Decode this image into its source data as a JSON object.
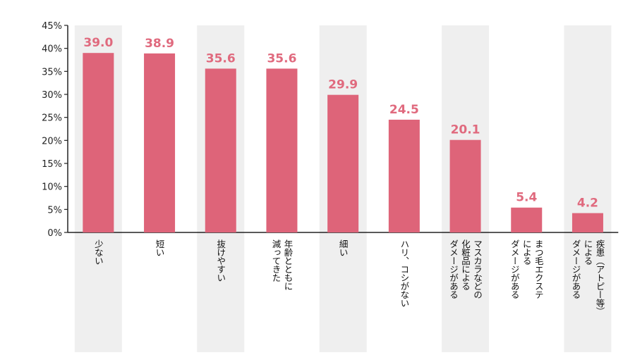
{
  "chart_data": {
    "type": "bar",
    "categories": [
      [
        "少ない"
      ],
      [
        "短い"
      ],
      [
        "抜けやすい"
      ],
      [
        "年齢とともに",
        "減ってきた"
      ],
      [
        "細い"
      ],
      [
        "ハリ、コシがない"
      ],
      [
        "マスカラなどの",
        "化粧品による",
        "ダメージがある"
      ],
      [
        "まつ毛エクステ",
        "による",
        "ダメージがある"
      ],
      [
        "疾患（アトピー等）",
        "による",
        "ダメージがある"
      ]
    ],
    "values": [
      39.0,
      38.9,
      35.6,
      35.6,
      29.9,
      24.5,
      20.1,
      5.4,
      4.2
    ],
    "value_labels": [
      "39.0",
      "38.9",
      "35.6",
      "35.6",
      "29.9",
      "24.5",
      "20.1",
      "5.4",
      "4.2"
    ],
    "y_ticks": [
      "0%",
      "5%",
      "10%",
      "15%",
      "20%",
      "25%",
      "30%",
      "35%",
      "40%",
      "45%"
    ],
    "ylim": [
      0,
      45
    ],
    "grid": false,
    "alternating_column_bands": true,
    "colors": {
      "bar": "#de6479",
      "value_label": "#e06a7e",
      "band": "#efefef",
      "axis": "#222222"
    }
  }
}
